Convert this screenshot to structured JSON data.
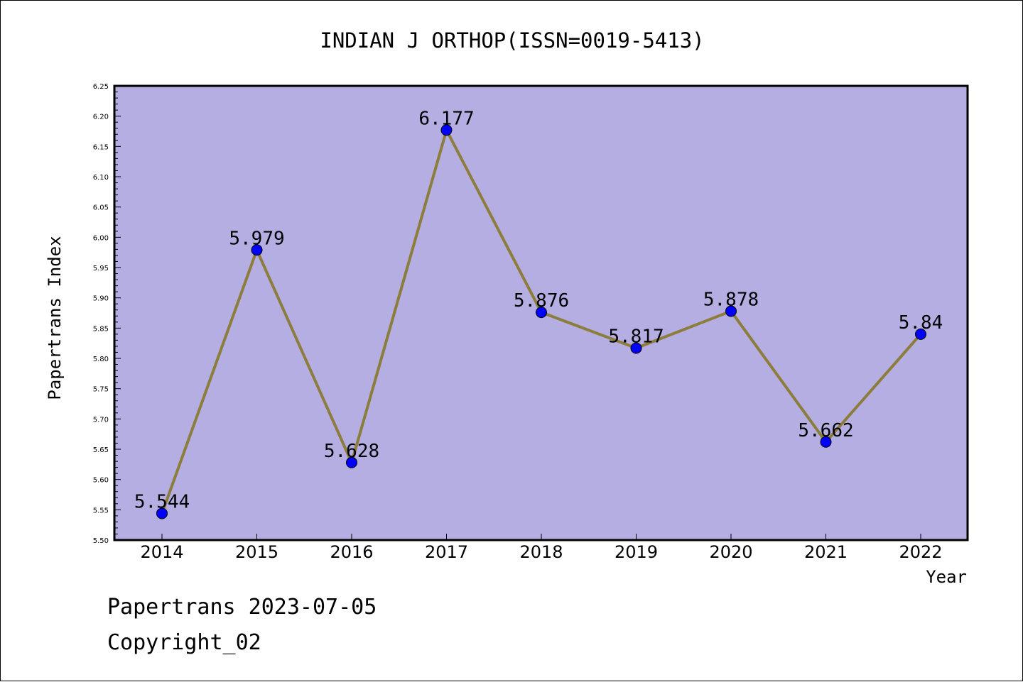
{
  "chart_data": {
    "type": "line",
    "title": "INDIAN J ORTHOP(ISSN=0019-5413)",
    "xlabel": "Year",
    "ylabel": "Papertrans Index",
    "categories": [
      "2014",
      "2015",
      "2016",
      "2017",
      "2018",
      "2019",
      "2020",
      "2021",
      "2022"
    ],
    "series": [
      {
        "values": [
          5.544,
          5.979,
          5.628,
          6.177,
          5.876,
          5.817,
          5.878,
          5.662,
          5.84
        ],
        "labels": [
          "5.544",
          "5.979",
          "5.628",
          "6.177",
          "5.876",
          "5.817",
          "5.878",
          "5.662",
          "5.84"
        ]
      }
    ],
    "ylim": [
      5.5,
      6.25
    ],
    "yticks": [
      "5.50",
      "5.55",
      "5.60",
      "5.65",
      "5.70",
      "5.75",
      "5.80",
      "5.85",
      "5.90",
      "5.95",
      "6.00",
      "6.05",
      "6.10",
      "6.15",
      "6.20",
      "6.25"
    ],
    "grid": false,
    "legend": "none",
    "colors": {
      "plot_background": "#b5aee2",
      "line": "#8c7d3c",
      "marker": "#0000ff"
    }
  },
  "footer": {
    "date_line": "Papertrans 2023-07-05",
    "copyright": "Copyright_02"
  }
}
